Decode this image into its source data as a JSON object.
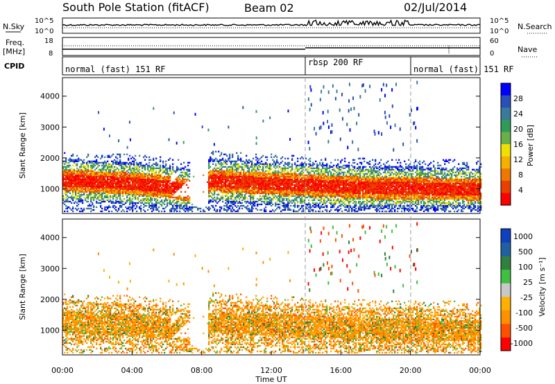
{
  "header": {
    "station": "South Pole Station (fitACF)",
    "beam": "Beam 02",
    "date": "02/Jul/2014"
  },
  "panels": {
    "nsky": {
      "left_label": "N.Sky",
      "right_label": "N.Search",
      "left_ticks": [
        "10^5",
        "10^0"
      ],
      "right_ticks": [
        "10^5",
        "10^0"
      ]
    },
    "freq": {
      "left_label_1": "Freq.",
      "left_label_2": "[MHz]",
      "right_label": "Nave",
      "left_ticks": [
        "18",
        "8"
      ],
      "right_ticks": [
        "60",
        "0"
      ]
    },
    "cpid": {
      "label": "CPID",
      "segments": [
        "normal (fast) 151 RF",
        "rbsp 200 RF",
        "normal (fast) 151 RF"
      ]
    }
  },
  "colors": {
    "power": [
      "#0000ff",
      "#2a4fb8",
      "#3a7a9a",
      "#2f9a5a",
      "#6ab04a",
      "#f0e000",
      "#f5b000",
      "#f07800",
      "#e84000",
      "#ff0000"
    ],
    "velocity": [
      "#ff0000",
      "#ff5000",
      "#ff9000",
      "#ffb000",
      "#c8c8c8",
      "#40c040",
      "#308040",
      "#2060a0",
      "#1040c0"
    ]
  },
  "chart_data": [
    {
      "type": "heatmap",
      "name": "power",
      "ylabel": "Slant Range [km]",
      "yticks": [
        "1000",
        "2000",
        "3000",
        "4000"
      ],
      "ylim": [
        200,
        4600
      ],
      "xlim": [
        0,
        24
      ],
      "colorbar": {
        "label": "Power [dB]",
        "ticks": [
          "4",
          "8",
          "12",
          "16",
          "20",
          "24",
          "28"
        ],
        "range": [
          0,
          32
        ]
      },
      "band": {
        "center_km": [
          1250,
          1200,
          1150,
          1050,
          900,
          1250,
          1200,
          1150,
          1100,
          1050,
          1000,
          1000,
          950
        ],
        "hours": [
          0,
          2,
          4,
          6,
          7.5,
          8.5,
          10,
          12,
          14,
          16,
          18,
          20,
          24
        ]
      }
    },
    {
      "type": "heatmap",
      "name": "velocity",
      "ylabel": "Slant Range [km]",
      "yticks": [
        "1000",
        "2000",
        "3000",
        "4000"
      ],
      "ylim": [
        200,
        4600
      ],
      "xlim": [
        0,
        24
      ],
      "colorbar": {
        "label": "Velocity [m s⁻¹]",
        "ticks": [
          "1000",
          "500",
          "100",
          "25",
          "-25",
          "-100",
          "-500",
          "-1000"
        ],
        "range": [
          -1500,
          1500
        ]
      }
    }
  ],
  "xaxis": {
    "ticks": [
      "00:00",
      "04:00",
      "08:00",
      "12:00",
      "16:00",
      "20:00",
      "00:00"
    ],
    "label": "Time UT"
  }
}
